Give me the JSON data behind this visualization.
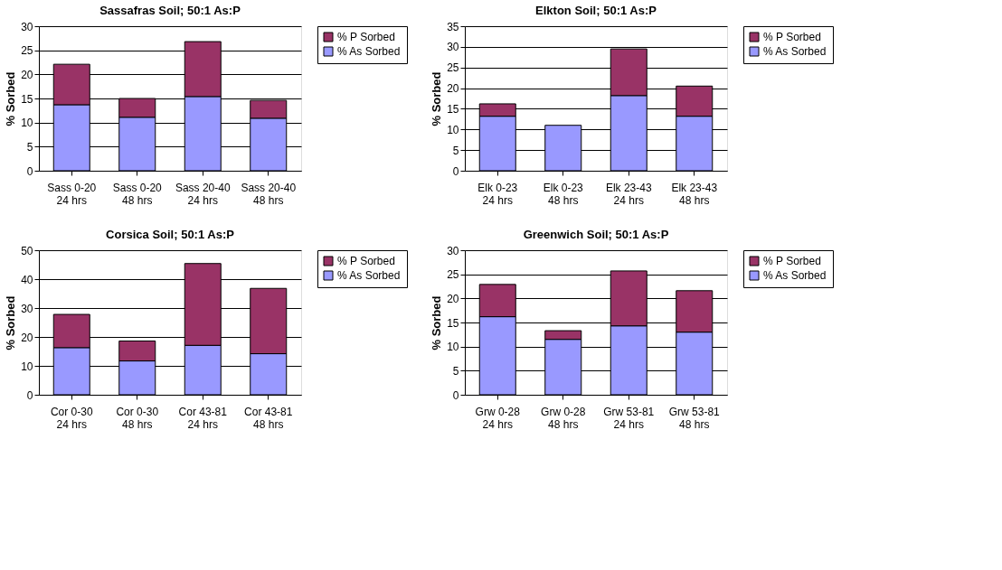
{
  "chart_data": [
    {
      "type": "bar",
      "title": "Sassafras Soil; 50:1 As:P",
      "ylabel": "% Sorbed",
      "stacked": true,
      "legend": "right",
      "grid": "y",
      "categories": [
        "Sass 0-20\n24 hrs",
        "Sass 0-20\n48 hrs",
        "Sass 20-40\n24 hrs",
        "Sass 20-40\n48 hrs"
      ],
      "ylim": [
        0,
        30
      ],
      "yticks": [
        0,
        5,
        10,
        15,
        20,
        25,
        30
      ],
      "series": [
        {
          "name": "% As Sorbed",
          "color": "#9999ff",
          "values": [
            13.7,
            11.1,
            15.4,
            10.9
          ]
        },
        {
          "name": "% P Sorbed",
          "color": "#993366",
          "values": [
            8.4,
            3.9,
            11.4,
            3.7
          ]
        }
      ]
    },
    {
      "type": "bar",
      "title": "Elkton Soil; 50:1 As:P",
      "ylabel": "% Sorbed",
      "stacked": true,
      "legend": "right",
      "grid": "y",
      "categories": [
        "Elk 0-23\n24 hrs",
        "Elk 0-23\n48 hrs",
        "Elk 23-43\n24 hrs",
        "Elk 23-43\n48 hrs"
      ],
      "ylim": [
        0,
        35
      ],
      "yticks": [
        0,
        5,
        10,
        15,
        20,
        25,
        30,
        35
      ],
      "series": [
        {
          "name": "% As Sorbed",
          "color": "#9999ff",
          "values": [
            13.2,
            11.0,
            18.2,
            13.2
          ]
        },
        {
          "name": "% P Sorbed",
          "color": "#993366",
          "values": [
            3.0,
            null,
            11.3,
            7.3
          ]
        }
      ]
    },
    {
      "type": "bar",
      "title": "Corsica Soil; 50:1 As:P",
      "ylabel": "% Sorbed",
      "stacked": true,
      "legend": "right",
      "grid": "y",
      "categories": [
        "Cor 0-30\n24 hrs",
        "Cor 0-30\n48 hrs",
        "Cor 43-81\n24 hrs",
        "Cor 43-81\n48 hrs"
      ],
      "ylim": [
        0,
        50
      ],
      "yticks": [
        0,
        10,
        20,
        30,
        40,
        50
      ],
      "series": [
        {
          "name": "% As Sorbed",
          "color": "#9999ff",
          "values": [
            16.3,
            11.7,
            17.1,
            14.2
          ]
        },
        {
          "name": "% P Sorbed",
          "color": "#993366",
          "values": [
            11.5,
            6.9,
            28.3,
            22.6
          ]
        }
      ]
    },
    {
      "type": "bar",
      "title": "Greenwich Soil; 50:1 As:P",
      "ylabel": "% Sorbed",
      "stacked": true,
      "legend": "right",
      "grid": "y",
      "categories": [
        "Grw 0-28\n24 hrs",
        "Grw 0-28\n48 hrs",
        "Grw 53-81\n24 hrs",
        "Grw 53-81\n48 hrs"
      ],
      "ylim": [
        0,
        30
      ],
      "yticks": [
        0,
        5,
        10,
        15,
        20,
        25,
        30
      ],
      "series": [
        {
          "name": "% As Sorbed",
          "color": "#9999ff",
          "values": [
            16.2,
            11.5,
            14.3,
            13.0
          ]
        },
        {
          "name": "% P Sorbed",
          "color": "#993366",
          "values": [
            6.7,
            1.8,
            11.4,
            8.6
          ]
        }
      ]
    }
  ]
}
